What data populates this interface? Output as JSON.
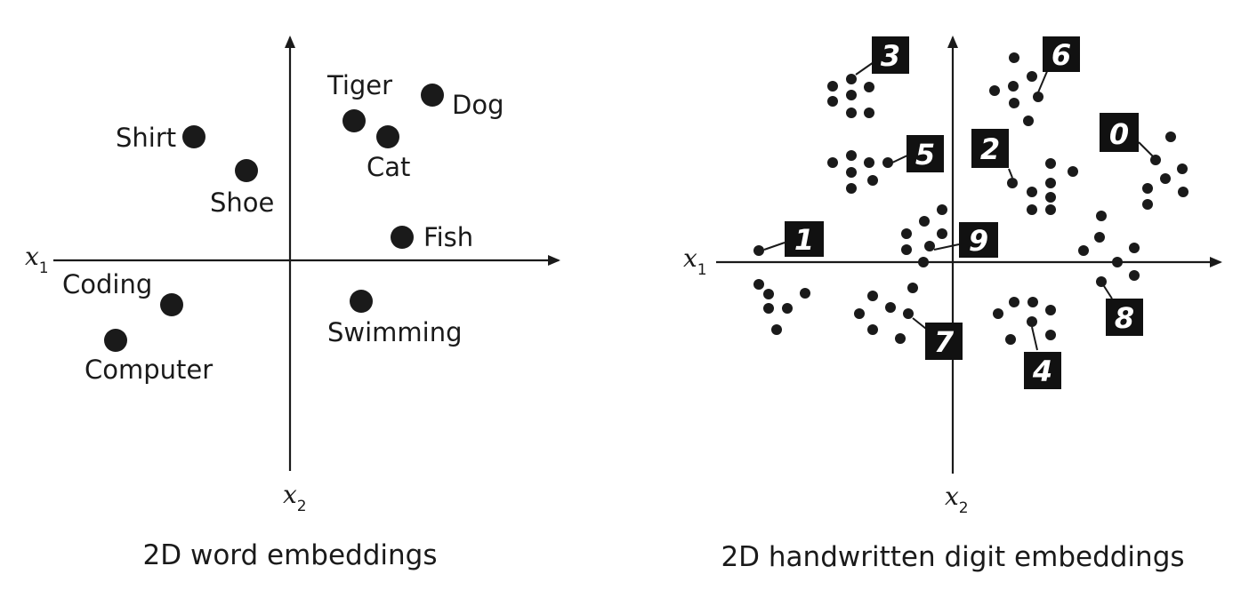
{
  "left_panel": {
    "caption": "2D word embeddings",
    "x_axis_label": "x",
    "x_axis_sub": "1",
    "y_axis_label": "x",
    "y_axis_sub": "2",
    "words": [
      {
        "label": "Tiger"
      },
      {
        "label": "Dog"
      },
      {
        "label": "Cat"
      },
      {
        "label": "Shirt"
      },
      {
        "label": "Shoe"
      },
      {
        "label": "Fish"
      },
      {
        "label": "Coding"
      },
      {
        "label": "Computer"
      },
      {
        "label": "Swimming"
      }
    ]
  },
  "right_panel": {
    "caption": "2D handwritten digit embeddings",
    "x_axis_label": "x",
    "x_axis_sub": "1",
    "y_axis_label": "x",
    "y_axis_sub": "2",
    "digits": [
      {
        "digit": "3"
      },
      {
        "digit": "6"
      },
      {
        "digit": "5"
      },
      {
        "digit": "2"
      },
      {
        "digit": "0"
      },
      {
        "digit": "1"
      },
      {
        "digit": "9"
      },
      {
        "digit": "8"
      },
      {
        "digit": "7"
      },
      {
        "digit": "4"
      }
    ]
  },
  "colors": {
    "ink": "#1a1a1a",
    "background": "#ffffff"
  }
}
